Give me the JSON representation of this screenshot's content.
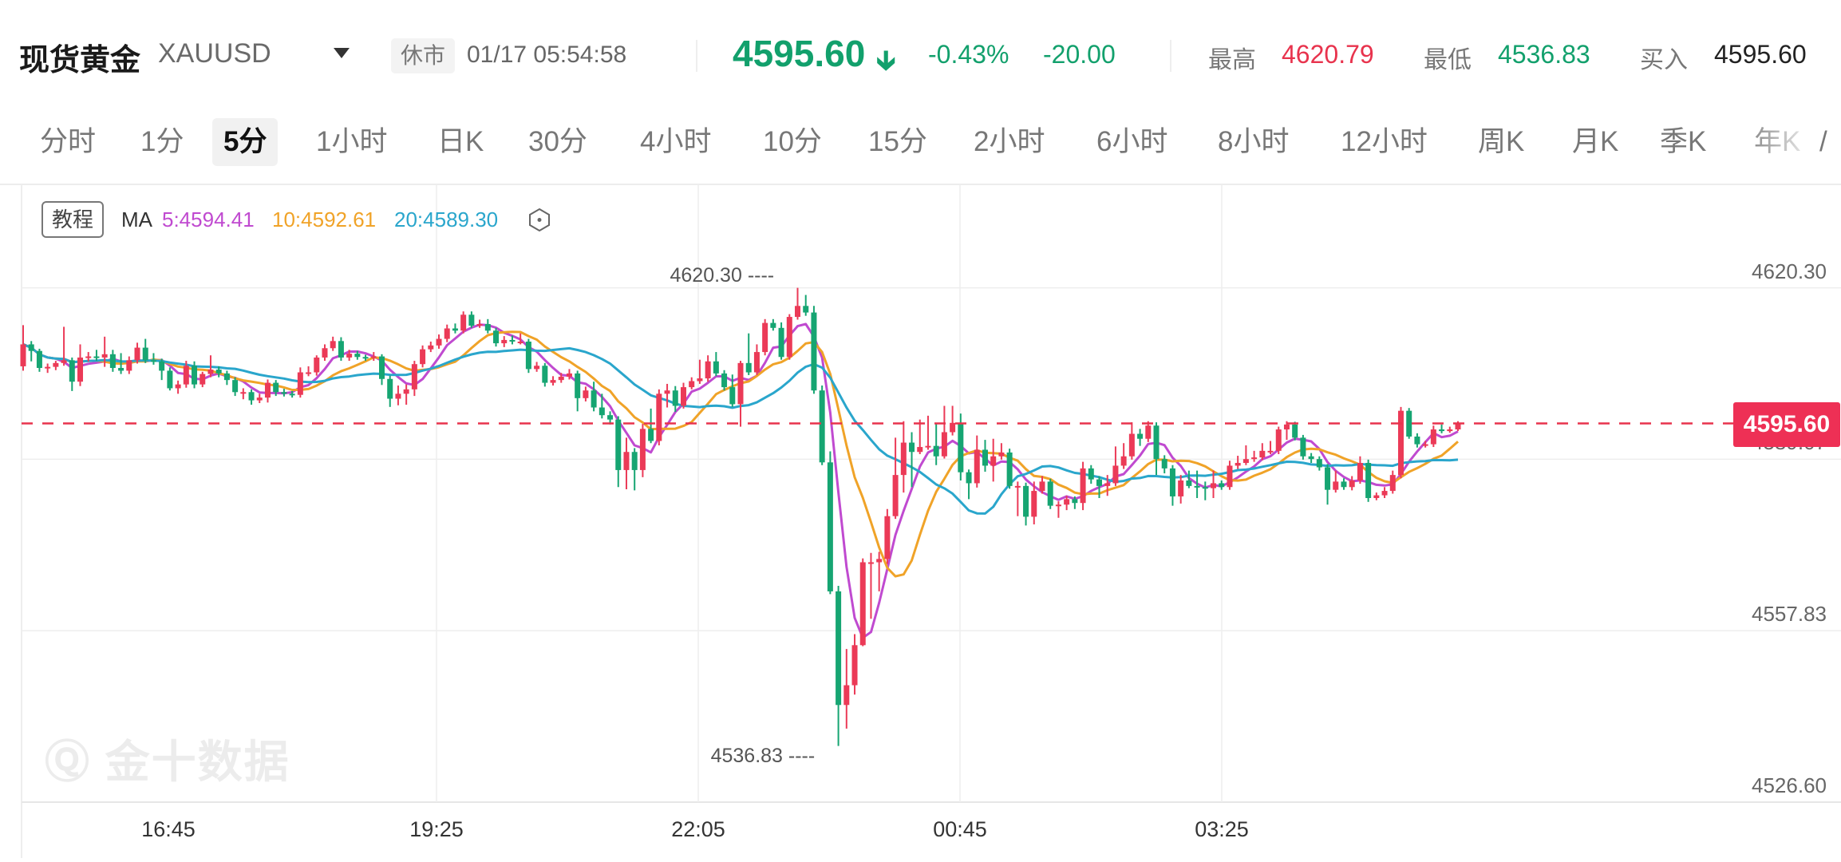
{
  "header": {
    "title": "现货黄金",
    "symbol": "XAUUSD",
    "status_badge": "休市",
    "datetime": "01/17 05:54:58",
    "price": "4595.60",
    "change_pct": "-0.43%",
    "change": "-20.00",
    "high_label": "最高",
    "high": "4620.79",
    "low_label": "最低",
    "low": "4536.83",
    "bid_label": "买入",
    "bid": "4595.60",
    "colors": {
      "down": "#12a06c",
      "up": "#e8334d"
    }
  },
  "tabs": [
    {
      "label": "分时"
    },
    {
      "label": "1分"
    },
    {
      "label": "5分",
      "active": true
    },
    {
      "label": "1小时"
    },
    {
      "label": "日K"
    },
    {
      "label": "30分"
    },
    {
      "label": "4小时"
    },
    {
      "label": "10分"
    },
    {
      "label": "15分"
    },
    {
      "label": "2小时"
    },
    {
      "label": "6小时"
    },
    {
      "label": "8小时"
    },
    {
      "label": "12小时"
    },
    {
      "label": "周K"
    },
    {
      "label": "月K"
    },
    {
      "label": "季K"
    },
    {
      "label": "年K"
    }
  ],
  "legend": {
    "tutorial": "教程",
    "ma_label": "MA",
    "ma5": "5:4594.41",
    "ma10": "10:4592.61",
    "ma20": "20:4589.30",
    "colors": {
      "ma5": "#c04ad0",
      "ma10": "#f0a328",
      "ma20": "#2aa6cc"
    }
  },
  "watermark": "金十数据",
  "chart_data": {
    "type": "candlestick",
    "interval": "5分",
    "y_ticks": [
      "4620.30",
      "4589.07",
      "4557.83",
      "4526.60"
    ],
    "x_ticks": [
      "16:45",
      "19:25",
      "22:05",
      "00:45",
      "03:25"
    ],
    "ylim": [
      4526.6,
      4639.0
    ],
    "grid": true,
    "last_price": "4595.60",
    "max_annotation": "4620.30",
    "min_annotation": "4536.83",
    "colors": {
      "up": "#eb3a57",
      "down": "#16a572",
      "last_line": "#e8334d"
    },
    "moving_averages": [
      5,
      10,
      20
    ],
    "ohlc": [
      [
        4606.0,
        4613.5,
        4605.2,
        4610.0
      ],
      [
        4610.0,
        4610.6,
        4606.9,
        4608.8
      ],
      [
        4608.8,
        4609.2,
        4605.0,
        4605.7
      ],
      [
        4605.7,
        4606.5,
        4604.8,
        4605.9
      ],
      [
        4605.9,
        4607.0,
        4605.3,
        4606.6
      ],
      [
        4606.6,
        4613.2,
        4606.1,
        4607.1
      ],
      [
        4607.1,
        4607.6,
        4601.5,
        4603.2
      ],
      [
        4603.2,
        4610.0,
        4602.4,
        4607.6
      ],
      [
        4607.6,
        4608.6,
        4606.9,
        4607.8
      ],
      [
        4607.8,
        4609.0,
        4607.0,
        4607.6
      ],
      [
        4607.6,
        4611.4,
        4605.9,
        4608.2
      ],
      [
        4608.2,
        4609.0,
        4605.0,
        4605.7
      ],
      [
        4605.7,
        4608.4,
        4604.6,
        4605.2
      ],
      [
        4605.2,
        4607.8,
        4604.6,
        4607.1
      ],
      [
        4607.1,
        4610.3,
        4606.5,
        4609.4
      ],
      [
        4609.4,
        4611.0,
        4606.6,
        4607.1
      ],
      [
        4607.1,
        4608.4,
        4606.3,
        4606.9
      ],
      [
        4606.9,
        4607.4,
        4603.5,
        4605.2
      ],
      [
        4605.2,
        4605.8,
        4601.6,
        4602.0
      ],
      [
        4602.0,
        4603.4,
        4601.0,
        4602.7
      ],
      [
        4602.7,
        4607.0,
        4602.1,
        4606.1
      ],
      [
        4606.1,
        4606.9,
        4602.0,
        4602.7
      ],
      [
        4602.7,
        4605.0,
        4602.2,
        4604.6
      ],
      [
        4604.6,
        4608.0,
        4604.0,
        4605.4
      ],
      [
        4605.4,
        4606.0,
        4604.0,
        4604.7
      ],
      [
        4604.7,
        4605.2,
        4602.6,
        4603.5
      ],
      [
        4603.5,
        4604.0,
        4600.6,
        4601.3
      ],
      [
        4601.3,
        4602.0,
        4600.0,
        4601.3
      ],
      [
        4601.3,
        4601.8,
        4599.0,
        4599.8
      ],
      [
        4599.8,
        4601.0,
        4599.3,
        4600.3
      ],
      [
        4600.3,
        4603.6,
        4599.4,
        4603.0
      ],
      [
        4603.0,
        4603.5,
        4600.6,
        4601.3
      ],
      [
        4601.3,
        4601.9,
        4600.5,
        4601.0
      ],
      [
        4601.0,
        4601.5,
        4600.3,
        4600.8
      ],
      [
        4600.8,
        4605.8,
        4600.3,
        4604.9
      ],
      [
        4604.9,
        4606.0,
        4604.2,
        4604.9
      ],
      [
        4604.9,
        4608.0,
        4604.3,
        4607.6
      ],
      [
        4607.6,
        4610.0,
        4607.0,
        4609.3
      ],
      [
        4609.3,
        4611.4,
        4608.8,
        4610.6
      ],
      [
        4610.6,
        4611.3,
        4607.0,
        4607.6
      ],
      [
        4607.6,
        4609.0,
        4607.0,
        4608.3
      ],
      [
        4608.3,
        4608.8,
        4607.2,
        4607.7
      ],
      [
        4607.7,
        4608.1,
        4607.0,
        4607.6
      ],
      [
        4607.6,
        4608.6,
        4607.0,
        4607.8
      ],
      [
        4607.8,
        4608.2,
        4602.6,
        4603.7
      ],
      [
        4603.7,
        4604.3,
        4598.6,
        4600.1
      ],
      [
        4600.1,
        4602.5,
        4598.9,
        4601.0
      ],
      [
        4601.0,
        4602.7,
        4599.0,
        4601.8
      ],
      [
        4601.8,
        4607.0,
        4600.6,
        4606.4
      ],
      [
        4606.4,
        4609.8,
        4605.8,
        4609.1
      ],
      [
        4609.1,
        4610.5,
        4608.6,
        4609.8
      ],
      [
        4609.8,
        4611.8,
        4609.2,
        4611.0
      ],
      [
        4611.0,
        4613.6,
        4610.4,
        4612.9
      ],
      [
        4612.9,
        4613.8,
        4612.0,
        4612.5
      ],
      [
        4612.5,
        4616.0,
        4612.0,
        4615.4
      ],
      [
        4615.4,
        4616.0,
        4613.0,
        4613.4
      ],
      [
        4613.4,
        4614.5,
        4613.0,
        4613.7
      ],
      [
        4613.7,
        4614.6,
        4612.0,
        4612.5
      ],
      [
        4612.5,
        4613.0,
        4609.6,
        4610.2
      ],
      [
        4610.2,
        4611.5,
        4609.5,
        4610.8
      ],
      [
        4610.8,
        4611.6,
        4610.0,
        4610.5
      ],
      [
        4610.5,
        4612.0,
        4610.0,
        4610.5
      ],
      [
        4610.5,
        4611.0,
        4604.8,
        4605.5
      ],
      [
        4605.5,
        4606.8,
        4605.0,
        4606.1
      ],
      [
        4606.1,
        4606.6,
        4602.3,
        4603.0
      ],
      [
        4603.0,
        4604.2,
        4602.5,
        4603.5
      ],
      [
        4603.5,
        4604.8,
        4603.0,
        4604.1
      ],
      [
        4604.1,
        4605.5,
        4603.6,
        4604.7
      ],
      [
        4604.7,
        4605.2,
        4597.8,
        4600.2
      ],
      [
        4600.2,
        4602.3,
        4599.6,
        4601.6
      ],
      [
        4601.6,
        4603.2,
        4597.8,
        4598.5
      ],
      [
        4598.5,
        4601.0,
        4596.5,
        4597.1
      ],
      [
        4597.1,
        4597.8,
        4595.4,
        4596.3
      ],
      [
        4596.3,
        4596.9,
        4584.0,
        4587.1
      ],
      [
        4587.1,
        4593.0,
        4583.6,
        4590.4
      ],
      [
        4590.4,
        4591.1,
        4583.4,
        4587.1
      ],
      [
        4587.1,
        4595.5,
        4585.8,
        4594.6
      ],
      [
        4594.6,
        4598.3,
        4592.0,
        4592.4
      ],
      [
        4592.4,
        4601.8,
        4591.6,
        4601.0
      ],
      [
        4601.0,
        4602.8,
        4598.5,
        4601.6
      ],
      [
        4601.6,
        4602.4,
        4597.7,
        4598.8
      ],
      [
        4598.8,
        4603.0,
        4598.3,
        4602.2
      ],
      [
        4602.2,
        4604.0,
        4601.8,
        4603.3
      ],
      [
        4603.3,
        4607.2,
        4602.8,
        4603.8
      ],
      [
        4603.8,
        4608.0,
        4603.2,
        4606.9
      ],
      [
        4606.9,
        4608.6,
        4604.2,
        4604.7
      ],
      [
        4604.7,
        4605.3,
        4601.6,
        4602.2
      ],
      [
        4602.2,
        4604.5,
        4598.6,
        4599.1
      ],
      [
        4599.1,
        4607.0,
        4595.0,
        4606.6
      ],
      [
        4606.6,
        4612.0,
        4604.4,
        4604.9
      ],
      [
        4604.9,
        4610.0,
        4604.4,
        4608.6
      ],
      [
        4608.6,
        4614.6,
        4608.0,
        4613.9
      ],
      [
        4613.9,
        4614.6,
        4612.5,
        4613.0
      ],
      [
        4613.0,
        4614.0,
        4607.2,
        4607.7
      ],
      [
        4607.7,
        4615.5,
        4607.2,
        4615.0
      ],
      [
        4615.0,
        4620.3,
        4614.5,
        4617.0
      ],
      [
        4617.0,
        4619.0,
        4615.2,
        4615.8
      ],
      [
        4615.8,
        4617.0,
        4601.0,
        4601.6
      ],
      [
        4601.6,
        4602.5,
        4588.0,
        4588.5
      ],
      [
        4588.5,
        4590.5,
        4564.5,
        4565.0
      ],
      [
        4565.0,
        4566.0,
        4536.83,
        4544.3
      ],
      [
        4544.3,
        4554.5,
        4540.0,
        4547.9
      ],
      [
        4547.9,
        4557.2,
        4546.2,
        4555.2
      ],
      [
        4555.2,
        4571.0,
        4555.0,
        4570.3
      ],
      [
        4570.3,
        4572.0,
        4560.0,
        4570.3
      ],
      [
        4570.3,
        4572.2,
        4565.0,
        4570.9
      ],
      [
        4570.9,
        4580.0,
        4570.0,
        4578.7
      ],
      [
        4578.7,
        4593.0,
        4578.2,
        4586.2
      ],
      [
        4586.2,
        4596.0,
        4583.0,
        4592.1
      ],
      [
        4592.1,
        4594.0,
        4584.0,
        4590.4
      ],
      [
        4590.4,
        4596.3,
        4590.0,
        4591.3
      ],
      [
        4591.3,
        4597.0,
        4590.8,
        4591.5
      ],
      [
        4591.5,
        4595.5,
        4588.0,
        4589.6
      ],
      [
        4589.6,
        4598.8,
        4589.2,
        4594.0
      ],
      [
        4594.0,
        4598.8,
        4593.4,
        4595.7
      ],
      [
        4595.7,
        4597.4,
        4585.2,
        4586.7
      ],
      [
        4586.7,
        4587.2,
        4581.8,
        4584.7
      ],
      [
        4584.7,
        4593.4,
        4583.9,
        4590.8
      ],
      [
        4590.8,
        4592.6,
        4586.8,
        4587.9
      ],
      [
        4587.9,
        4592.8,
        4585.0,
        4589.6
      ],
      [
        4589.6,
        4592.0,
        4589.0,
        4590.3
      ],
      [
        4590.3,
        4591.0,
        4583.7,
        4584.2
      ],
      [
        4584.2,
        4585.0,
        4578.7,
        4584.2
      ],
      [
        4584.2,
        4584.8,
        4577.0,
        4578.6
      ],
      [
        4578.6,
        4585.0,
        4577.2,
        4583.3
      ],
      [
        4583.3,
        4586.0,
        4582.8,
        4585.0
      ],
      [
        4585.0,
        4585.5,
        4580.0,
        4580.6
      ],
      [
        4580.6,
        4581.4,
        4578.4,
        4580.8
      ],
      [
        4580.8,
        4582.4,
        4579.8,
        4581.8
      ],
      [
        4581.8,
        4582.3,
        4580.0,
        4581.1
      ],
      [
        4581.1,
        4588.6,
        4579.8,
        4587.4
      ],
      [
        4587.4,
        4588.0,
        4584.6,
        4585.4
      ],
      [
        4585.4,
        4586.0,
        4582.0,
        4584.2
      ],
      [
        4584.2,
        4586.2,
        4582.4,
        4584.7
      ],
      [
        4584.7,
        4591.4,
        4584.2,
        4587.9
      ],
      [
        4587.9,
        4592.0,
        4587.3,
        4589.6
      ],
      [
        4589.6,
        4595.8,
        4589.0,
        4593.7
      ],
      [
        4593.7,
        4594.6,
        4591.5,
        4592.8
      ],
      [
        4592.8,
        4596.0,
        4592.2,
        4595.2
      ],
      [
        4595.2,
        4595.8,
        4586.2,
        4589.1
      ],
      [
        4589.1,
        4589.8,
        4586.5,
        4587.4
      ],
      [
        4587.4,
        4588.0,
        4580.6,
        4582.3
      ],
      [
        4582.3,
        4586.2,
        4581.0,
        4585.2
      ],
      [
        4585.2,
        4587.0,
        4583.8,
        4584.2
      ],
      [
        4584.2,
        4587.0,
        4582.0,
        4584.0
      ],
      [
        4584.0,
        4585.0,
        4581.6,
        4583.8
      ],
      [
        4583.8,
        4587.0,
        4582.0,
        4584.7
      ],
      [
        4584.7,
        4585.2,
        4583.5,
        4584.0
      ],
      [
        4584.0,
        4588.8,
        4583.5,
        4587.9
      ],
      [
        4587.9,
        4589.7,
        4587.3,
        4588.4
      ],
      [
        4588.4,
        4591.6,
        4588.0,
        4589.1
      ],
      [
        4589.1,
        4590.6,
        4588.6,
        4589.4
      ],
      [
        4589.4,
        4592.0,
        4588.9,
        4590.6
      ],
      [
        4590.6,
        4592.4,
        4590.0,
        4590.6
      ],
      [
        4590.6,
        4595.0,
        4590.0,
        4594.5
      ],
      [
        4594.5,
        4596.0,
        4592.6,
        4595.4
      ],
      [
        4595.4,
        4595.9,
        4592.5,
        4593.0
      ],
      [
        4593.0,
        4593.5,
        4589.0,
        4589.6
      ],
      [
        4589.6,
        4590.2,
        4588.4,
        4589.1
      ],
      [
        4589.1,
        4589.6,
        4587.0,
        4587.6
      ],
      [
        4587.6,
        4588.2,
        4580.8,
        4583.5
      ],
      [
        4583.5,
        4587.0,
        4583.0,
        4585.0
      ],
      [
        4585.0,
        4585.6,
        4583.5,
        4584.0
      ],
      [
        4584.0,
        4586.0,
        4583.4,
        4585.2
      ],
      [
        4585.2,
        4589.6,
        4584.6,
        4588.4
      ],
      [
        4588.4,
        4589.0,
        4581.3,
        4582.0
      ],
      [
        4582.0,
        4583.0,
        4581.6,
        4582.5
      ],
      [
        4582.5,
        4584.0,
        4582.0,
        4583.3
      ],
      [
        4583.3,
        4587.0,
        4582.8,
        4586.2
      ],
      [
        4586.2,
        4598.6,
        4585.6,
        4597.9
      ],
      [
        4597.9,
        4598.4,
        4592.8,
        4593.2
      ],
      [
        4593.2,
        4593.8,
        4591.2,
        4591.8
      ],
      [
        4591.8,
        4592.4,
        4591.2,
        4591.8
      ],
      [
        4591.8,
        4595.2,
        4591.3,
        4594.5
      ],
      [
        4594.5,
        4595.4,
        4593.8,
        4594.2
      ],
      [
        4594.2,
        4595.0,
        4593.9,
        4594.5
      ],
      [
        4594.5,
        4596.0,
        4594.2,
        4595.6
      ]
    ]
  }
}
